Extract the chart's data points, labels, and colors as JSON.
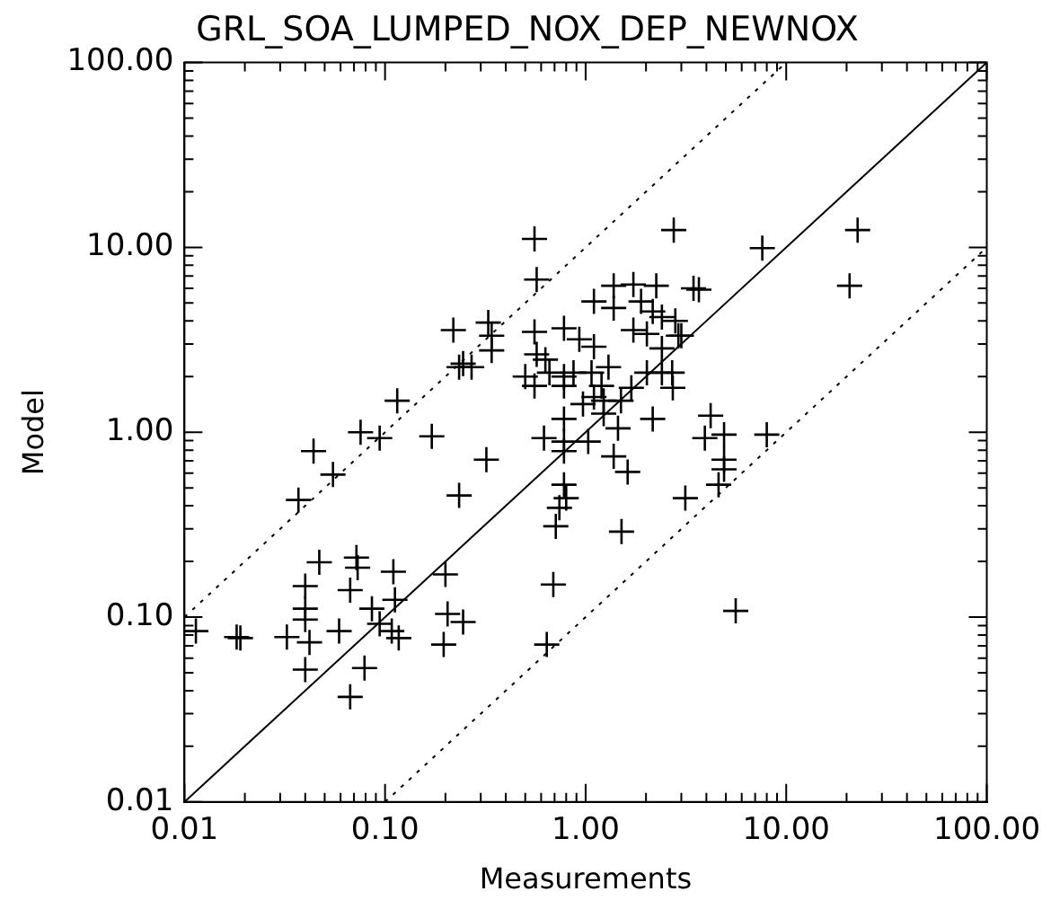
{
  "chart_data": {
    "type": "scatter",
    "title": "GRL_SOA_LUMPED_NOX_DEP_NEWNOX",
    "xlabel": "Measurements",
    "ylabel": "Model",
    "log": "xy",
    "grid": false,
    "xlim": [
      0.01,
      100
    ],
    "ylim": [
      0.01,
      100
    ],
    "xticks": [
      {
        "value": 0.01,
        "label": "0.01"
      },
      {
        "value": 0.02,
        "label": null
      },
      {
        "value": 0.03,
        "label": null
      },
      {
        "value": 0.04,
        "label": null
      },
      {
        "value": 0.05,
        "label": null
      },
      {
        "value": 0.06,
        "label": null
      },
      {
        "value": 0.07,
        "label": null
      },
      {
        "value": 0.08,
        "label": null
      },
      {
        "value": 0.09,
        "label": null
      },
      {
        "value": 0.1,
        "label": "0.10"
      },
      {
        "value": 0.2,
        "label": null
      },
      {
        "value": 0.3,
        "label": null
      },
      {
        "value": 0.4,
        "label": null
      },
      {
        "value": 0.5,
        "label": null
      },
      {
        "value": 0.6,
        "label": null
      },
      {
        "value": 0.7,
        "label": null
      },
      {
        "value": 0.8,
        "label": null
      },
      {
        "value": 0.9,
        "label": null
      },
      {
        "value": 1,
        "label": "1.00"
      },
      {
        "value": 2,
        "label": null
      },
      {
        "value": 3,
        "label": null
      },
      {
        "value": 4,
        "label": null
      },
      {
        "value": 5,
        "label": null
      },
      {
        "value": 6,
        "label": null
      },
      {
        "value": 7,
        "label": null
      },
      {
        "value": 8,
        "label": null
      },
      {
        "value": 9,
        "label": null
      },
      {
        "value": 10,
        "label": "10.00"
      },
      {
        "value": 20,
        "label": null
      },
      {
        "value": 30,
        "label": null
      },
      {
        "value": 40,
        "label": null
      },
      {
        "value": 50,
        "label": null
      },
      {
        "value": 60,
        "label": null
      },
      {
        "value": 70,
        "label": null
      },
      {
        "value": 80,
        "label": null
      },
      {
        "value": 90,
        "label": null
      },
      {
        "value": 100,
        "label": "100.00"
      }
    ],
    "yticks": [
      {
        "value": 0.01,
        "label": "0.01"
      },
      {
        "value": 0.02,
        "label": null
      },
      {
        "value": 0.03,
        "label": null
      },
      {
        "value": 0.04,
        "label": null
      },
      {
        "value": 0.05,
        "label": null
      },
      {
        "value": 0.06,
        "label": null
      },
      {
        "value": 0.07,
        "label": null
      },
      {
        "value": 0.08,
        "label": null
      },
      {
        "value": 0.09,
        "label": null
      },
      {
        "value": 0.1,
        "label": "0.10"
      },
      {
        "value": 0.2,
        "label": null
      },
      {
        "value": 0.3,
        "label": null
      },
      {
        "value": 0.4,
        "label": null
      },
      {
        "value": 0.5,
        "label": null
      },
      {
        "value": 0.6,
        "label": null
      },
      {
        "value": 0.7,
        "label": null
      },
      {
        "value": 0.8,
        "label": null
      },
      {
        "value": 0.9,
        "label": null
      },
      {
        "value": 1,
        "label": "1.00"
      },
      {
        "value": 2,
        "label": null
      },
      {
        "value": 3,
        "label": null
      },
      {
        "value": 4,
        "label": null
      },
      {
        "value": 5,
        "label": null
      },
      {
        "value": 6,
        "label": null
      },
      {
        "value": 7,
        "label": null
      },
      {
        "value": 8,
        "label": null
      },
      {
        "value": 9,
        "label": null
      },
      {
        "value": 10,
        "label": "10.00"
      },
      {
        "value": 20,
        "label": null
      },
      {
        "value": 30,
        "label": null
      },
      {
        "value": 40,
        "label": null
      },
      {
        "value": 50,
        "label": null
      },
      {
        "value": 60,
        "label": null
      },
      {
        "value": 70,
        "label": null
      },
      {
        "value": 80,
        "label": null
      },
      {
        "value": 90,
        "label": null
      },
      {
        "value": 100,
        "label": "100.00"
      }
    ],
    "series": [
      {
        "color": "#000000",
        "marker": "cross",
        "x": [
          0.245,
          0.115,
          0.0755,
          0.094,
          0.171,
          0.044,
          0.055,
          0.037,
          0.234,
          0.047,
          0.072,
          0.073,
          0.11,
          0.2,
          0.04,
          0.067,
          0.04,
          0.086,
          0.112,
          0.04,
          0.205,
          0.245,
          0.094,
          0.0114,
          0.0182,
          0.019,
          0.0324,
          0.042,
          0.059,
          0.108,
          0.117,
          0.196,
          0.04,
          0.079,
          0.067,
          0.556,
          2.75,
          0.57,
          1.38,
          1.73,
          2.25,
          3.67,
          1.1,
          1.38,
          1.89,
          2.16,
          2.4,
          1.73,
          0.219,
          0.327,
          0.34,
          0.34,
          0.556,
          0.78,
          0.93,
          1.1,
          2.02,
          3.0,
          2.4,
          0.234,
          0.27,
          0.57,
          0.63,
          0.5,
          0.66,
          0.78,
          0.87,
          1.07,
          1.3,
          0.556,
          0.78,
          1.2,
          1.23,
          1.5,
          1.1,
          2.02,
          2.4,
          2.72,
          1.69,
          0.97,
          1.23,
          0.78,
          1.45,
          2.16,
          0.62,
          0.78,
          1.03,
          0.78,
          1.38,
          1.62,
          0.32,
          4.2,
          3.93,
          4.9,
          4.9,
          4.9,
          4.6,
          3.14,
          0.78,
          0.8,
          0.74,
          0.71,
          7.6,
          22.7,
          20.7,
          3.45,
          2.8,
          2.9,
          2.7,
          8.0,
          5.6,
          1.51,
          0.69,
          0.64
        ],
        "values": [
          2.35,
          1.48,
          1.0,
          0.93,
          0.95,
          0.79,
          0.59,
          0.43,
          0.455,
          0.198,
          0.21,
          0.185,
          0.176,
          0.17,
          0.147,
          0.14,
          0.111,
          0.111,
          0.124,
          0.097,
          0.104,
          0.094,
          0.092,
          0.084,
          0.078,
          0.077,
          0.078,
          0.073,
          0.084,
          0.084,
          0.077,
          0.071,
          0.052,
          0.053,
          0.037,
          11.1,
          12.4,
          6.7,
          6.2,
          6.3,
          6.2,
          5.9,
          5.1,
          4.7,
          5.1,
          4.5,
          4.2,
          3.57,
          3.57,
          3.92,
          3.33,
          2.77,
          3.49,
          3.65,
          3.18,
          2.9,
          3.4,
          3.33,
          2.84,
          2.25,
          2.25,
          2.64,
          2.47,
          2.0,
          2.1,
          2.0,
          2.1,
          2.1,
          2.25,
          1.78,
          1.78,
          1.78,
          1.48,
          1.48,
          1.55,
          2.1,
          2.1,
          1.74,
          1.74,
          1.42,
          1.26,
          1.18,
          1.05,
          1.18,
          0.93,
          0.89,
          0.89,
          0.79,
          0.74,
          0.61,
          0.71,
          1.23,
          0.93,
          0.97,
          0.71,
          0.63,
          0.52,
          0.44,
          0.52,
          0.44,
          0.39,
          0.31,
          9.9,
          12.4,
          6.2,
          6.0,
          4.0,
          3.33,
          2.1,
          0.97,
          0.108,
          0.29,
          0.15,
          0.071
        ]
      },
      {
        "type": "line",
        "color": "#000000",
        "line_style": "solid",
        "marker": "none",
        "x": [
          0.01,
          100
        ],
        "values": [
          0.01,
          100
        ]
      },
      {
        "type": "line",
        "color": "#000000",
        "line_style": "dotted",
        "marker": "none",
        "x": [
          0.01,
          10
        ],
        "values": [
          0.1,
          100
        ]
      },
      {
        "type": "line",
        "color": "#000000",
        "line_style": "dotted",
        "marker": "none",
        "x": [
          0.1,
          100
        ],
        "values": [
          0.01,
          10
        ]
      }
    ]
  }
}
